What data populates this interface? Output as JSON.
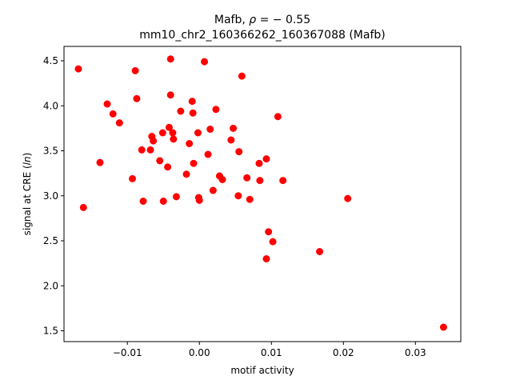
{
  "chart_data": {
    "type": "scatter",
    "title_line1_prefix": "Mafb, ",
    "title_line1_rho": "ρ",
    "title_line1_suffix": " = − 0.55",
    "title_line2": "mm10_chr2_160366262_160367088 (Mafb)",
    "xlabel": "motif activity",
    "ylabel_prefix": "signal at CRE (",
    "ylabel_italic": "ln",
    "ylabel_suffix": ")",
    "xlim": [
      -0.0188,
      0.0363
    ],
    "ylim": [
      1.38,
      4.66
    ],
    "x_ticks": [
      -0.01,
      0.0,
      0.01,
      0.02,
      0.03
    ],
    "x_tick_labels": [
      "−0.01",
      "0.00",
      "0.01",
      "0.02",
      "0.03"
    ],
    "y_ticks": [
      1.5,
      2.0,
      2.5,
      3.0,
      3.5,
      4.0,
      4.5
    ],
    "y_tick_labels": [
      "1.5",
      "2.0",
      "2.5",
      "3.0",
      "3.5",
      "4.0",
      "4.5"
    ],
    "marker_color": "#ff0000",
    "points": [
      {
        "x": -0.0168,
        "y": 4.41
      },
      {
        "x": -0.0161,
        "y": 2.87
      },
      {
        "x": -0.0138,
        "y": 3.37
      },
      {
        "x": -0.0128,
        "y": 4.02
      },
      {
        "x": -0.012,
        "y": 3.91
      },
      {
        "x": -0.0111,
        "y": 3.81
      },
      {
        "x": -0.0093,
        "y": 3.19
      },
      {
        "x": -0.0089,
        "y": 4.39
      },
      {
        "x": -0.0087,
        "y": 4.08
      },
      {
        "x": -0.008,
        "y": 3.51
      },
      {
        "x": -0.0078,
        "y": 2.94
      },
      {
        "x": -0.0068,
        "y": 3.51
      },
      {
        "x": -0.0066,
        "y": 3.66
      },
      {
        "x": -0.0064,
        "y": 3.61
      },
      {
        "x": -0.0055,
        "y": 3.39
      },
      {
        "x": -0.0051,
        "y": 3.7
      },
      {
        "x": -0.005,
        "y": 2.94
      },
      {
        "x": -0.0044,
        "y": 3.32
      },
      {
        "x": -0.0042,
        "y": 3.76
      },
      {
        "x": -0.004,
        "y": 4.52
      },
      {
        "x": -0.004,
        "y": 4.12
      },
      {
        "x": -0.0037,
        "y": 3.7
      },
      {
        "x": -0.0036,
        "y": 3.63
      },
      {
        "x": -0.0032,
        "y": 2.99
      },
      {
        "x": -0.0026,
        "y": 3.94
      },
      {
        "x": -0.0018,
        "y": 3.24
      },
      {
        "x": -0.0014,
        "y": 3.58
      },
      {
        "x": -0.001,
        "y": 4.05
      },
      {
        "x": -0.0009,
        "y": 3.92
      },
      {
        "x": -0.0008,
        "y": 3.36
      },
      {
        "x": -0.0002,
        "y": 3.7
      },
      {
        "x": -0.0001,
        "y": 2.98
      },
      {
        "x": 0.0,
        "y": 2.95
      },
      {
        "x": 0.0007,
        "y": 4.49
      },
      {
        "x": 0.0012,
        "y": 3.46
      },
      {
        "x": 0.0015,
        "y": 3.74
      },
      {
        "x": 0.0019,
        "y": 3.06
      },
      {
        "x": 0.0023,
        "y": 3.96
      },
      {
        "x": 0.0028,
        "y": 3.22
      },
      {
        "x": 0.0032,
        "y": 3.18
      },
      {
        "x": 0.0044,
        "y": 3.62
      },
      {
        "x": 0.0047,
        "y": 3.75
      },
      {
        "x": 0.0054,
        "y": 3.0
      },
      {
        "x": 0.0055,
        "y": 3.49
      },
      {
        "x": 0.0059,
        "y": 4.33
      },
      {
        "x": 0.0066,
        "y": 3.2
      },
      {
        "x": 0.007,
        "y": 2.96
      },
      {
        "x": 0.0083,
        "y": 3.36
      },
      {
        "x": 0.0084,
        "y": 3.17
      },
      {
        "x": 0.0093,
        "y": 3.41
      },
      {
        "x": 0.0093,
        "y": 2.3
      },
      {
        "x": 0.0096,
        "y": 2.6
      },
      {
        "x": 0.0102,
        "y": 2.49
      },
      {
        "x": 0.0109,
        "y": 3.88
      },
      {
        "x": 0.0116,
        "y": 3.17
      },
      {
        "x": 0.0167,
        "y": 2.38
      },
      {
        "x": 0.0206,
        "y": 2.97
      },
      {
        "x": 0.0339,
        "y": 1.54
      }
    ]
  }
}
